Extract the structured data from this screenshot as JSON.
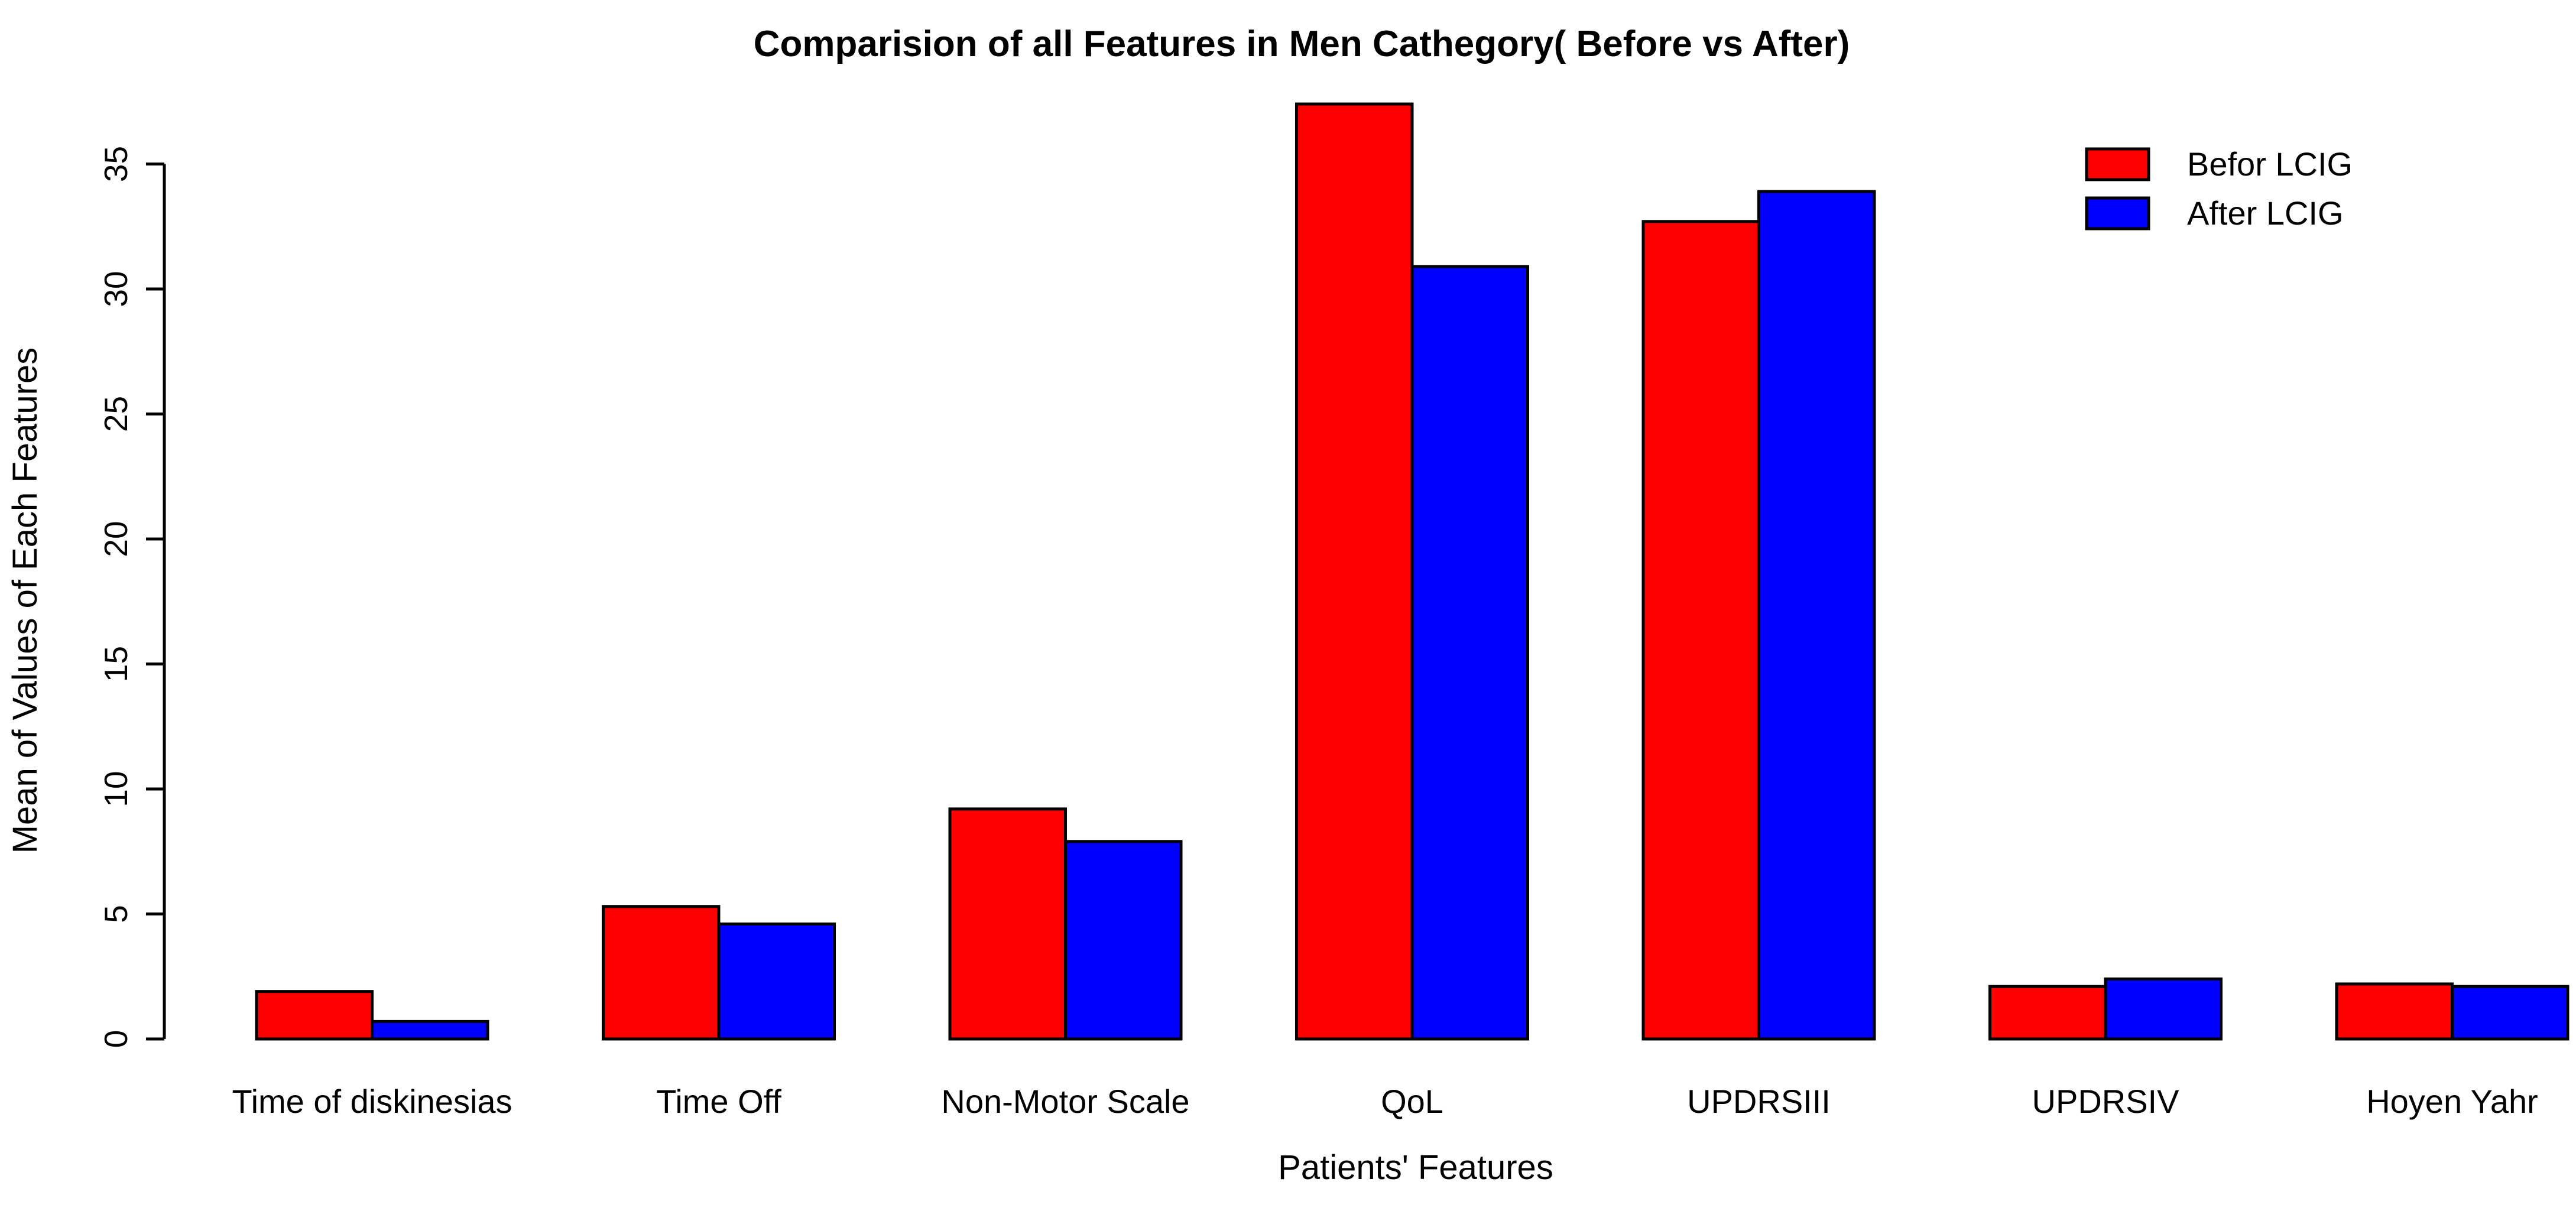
{
  "figure": {
    "background": "#FFFFFF",
    "text_color": "#000000",
    "axis_color": "#000000"
  },
  "chart_data": {
    "type": "bar",
    "title": "Comparision of all Features in Men Cathegory( Before vs After)",
    "xlabel": "Patients' Features",
    "ylabel": "Mean of Values of Each Features",
    "categories": [
      "Time of diskinesias",
      "Time Off",
      "Non-Motor Scale",
      "QoL",
      "UPDRSIII",
      "UPDRSIV",
      "Hoyen Yahr"
    ],
    "series": [
      {
        "name": "Befor LCIG",
        "color": "#FF0000",
        "values": [
          1.9,
          5.3,
          9.2,
          37.4,
          32.7,
          2.1,
          2.2
        ]
      },
      {
        "name": "After LCIG",
        "color": "#0000FF",
        "values": [
          0.7,
          4.6,
          7.9,
          30.9,
          33.9,
          2.4,
          2.1
        ]
      }
    ],
    "ylim": [
      0,
      35
    ],
    "yticks": [
      0,
      5,
      10,
      15,
      20,
      25,
      30,
      35
    ],
    "grid": false,
    "bar_border_color": "#000000",
    "legend_position": "top-right"
  }
}
